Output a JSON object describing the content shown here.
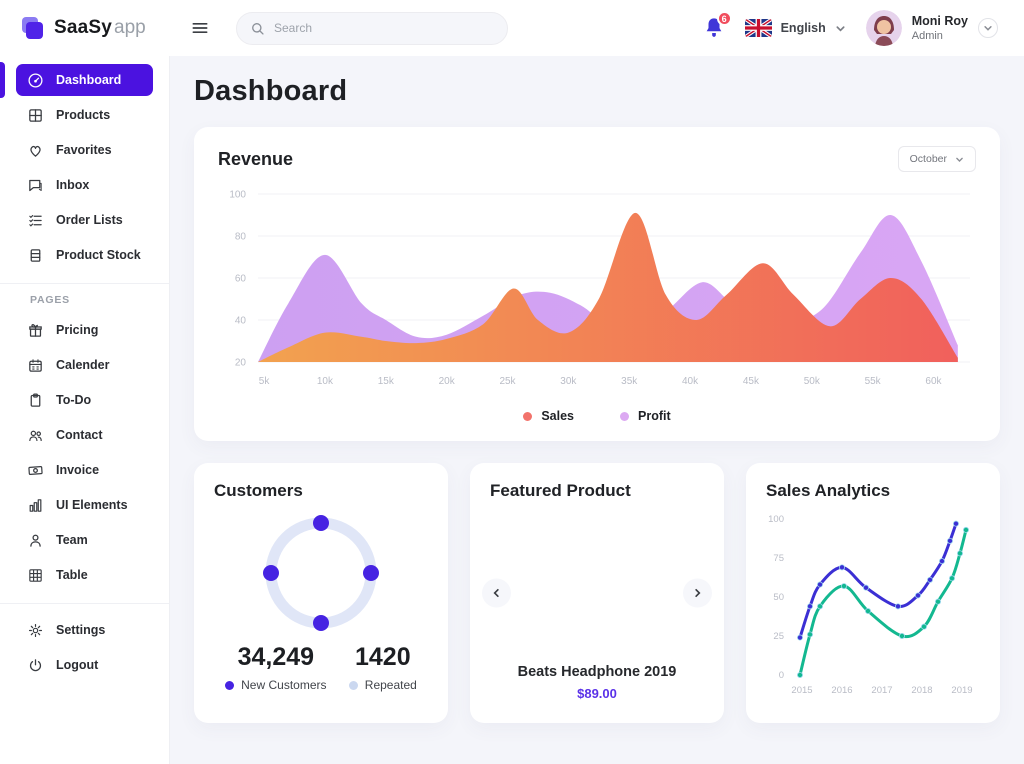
{
  "topbar": {
    "brand_name": "SaaSy",
    "brand_suffix": "app",
    "search_placeholder": "Search",
    "notification_count": "6",
    "language": "English",
    "user": {
      "name": "Moni Roy",
      "role": "Admin"
    }
  },
  "sidebar": {
    "main": [
      {
        "label": "Dashboard",
        "icon": "dashboard-icon",
        "active": true
      },
      {
        "label": "Products",
        "icon": "products-icon"
      },
      {
        "label": "Favorites",
        "icon": "heart-icon"
      },
      {
        "label": "Inbox",
        "icon": "chat-icon"
      },
      {
        "label": "Order Lists",
        "icon": "list-check-icon"
      },
      {
        "label": "Product Stock",
        "icon": "stock-icon"
      }
    ],
    "section_label": "PAGES",
    "pages": [
      {
        "label": "Pricing",
        "icon": "gift-icon"
      },
      {
        "label": "Calender",
        "icon": "calendar-icon"
      },
      {
        "label": "To-Do",
        "icon": "clipboard-icon"
      },
      {
        "label": "Contact",
        "icon": "contacts-icon"
      },
      {
        "label": "Invoice",
        "icon": "invoice-icon"
      },
      {
        "label": "UI Elements",
        "icon": "bar-chart-icon"
      },
      {
        "label": "Team",
        "icon": "person-icon"
      },
      {
        "label": "Table",
        "icon": "table-icon"
      }
    ],
    "footer": [
      {
        "label": "Settings",
        "icon": "gear-icon"
      },
      {
        "label": "Logout",
        "icon": "power-icon"
      }
    ]
  },
  "page": {
    "title": "Dashboard"
  },
  "revenue": {
    "title": "Revenue",
    "period": "October",
    "legend": [
      {
        "label": "Sales",
        "color": "#F2736B"
      },
      {
        "label": "Profit",
        "color": "#DCA9F2"
      }
    ],
    "chart": {
      "type": "area",
      "x_tick_labels": [
        "5k",
        "10k",
        "15k",
        "20k",
        "25k",
        "30k",
        "35k",
        "40k",
        "45k",
        "50k",
        "55k",
        "60k"
      ],
      "x_tick_values": [
        5,
        10,
        15,
        20,
        25,
        30,
        35,
        40,
        45,
        50,
        55,
        60
      ],
      "y_ticks": [
        100,
        80,
        60,
        40,
        20
      ],
      "x_range": [
        4.5,
        63
      ],
      "y_range": [
        20,
        100
      ],
      "grid": "horizontal",
      "series": [
        {
          "name": "Profit",
          "fill_from": "#CDA0F2",
          "fill_to": "#D9A6F4",
          "x": [
            4.5,
            7,
            10,
            13,
            15,
            17.5,
            20,
            23,
            26,
            28.5,
            31,
            33,
            35.5,
            38,
            41,
            43.5,
            46,
            48.5,
            51,
            54,
            56.5,
            59,
            62
          ],
          "values": [
            20,
            48,
            71,
            48,
            40,
            32,
            33,
            42,
            52,
            53,
            47,
            39,
            36,
            44,
            58,
            48,
            45,
            40,
            46,
            72,
            90,
            68,
            28
          ]
        },
        {
          "name": "Sales",
          "fill_from": "#F2A24F",
          "fill_to": "#F1605C",
          "x": [
            4.5,
            7,
            10,
            13,
            15,
            17.5,
            20,
            23,
            25.5,
            27.5,
            30,
            32.5,
            35.5,
            38,
            40.5,
            43,
            46,
            48.5,
            51.5,
            54,
            56.5,
            59,
            62
          ],
          "values": [
            20,
            27,
            34,
            32,
            30,
            29,
            31,
            38,
            55,
            40,
            34,
            50,
            91,
            52,
            40,
            52,
            67,
            52,
            37,
            50,
            60,
            50,
            22
          ]
        }
      ]
    }
  },
  "customers": {
    "title": "Customers",
    "chart": {
      "type": "donut",
      "ring_color": "#E0E6F7",
      "dot_color": "#4623E2",
      "segments": [
        {
          "label": "New Customers",
          "value": 34249
        },
        {
          "label": "Repeated",
          "value": 1420
        }
      ]
    },
    "stats": [
      {
        "value": "34,249",
        "label": "New Customers",
        "dot_color": "#4623E2"
      },
      {
        "value": "1420",
        "label": "Repeated",
        "dot_color": "#CBD8F0"
      }
    ]
  },
  "featured": {
    "title": "Featured Product",
    "product_name": "Beats Headphone 2019",
    "price": "$89.00"
  },
  "analytics": {
    "title": "Sales Analytics",
    "chart": {
      "type": "line",
      "x_ticks": [
        2015,
        2016,
        2017,
        2018,
        2019
      ],
      "y_ticks": [
        0,
        25,
        50,
        75,
        100
      ],
      "x_range": [
        2014.75,
        2019.3
      ],
      "y_range": [
        0,
        100
      ],
      "series": [
        {
          "name": "primary",
          "color": "#3B2FD4",
          "points": [
            [
              2014.95,
              24
            ],
            [
              2015.2,
              44
            ],
            [
              2015.45,
              58
            ],
            [
              2016,
              69
            ],
            [
              2016.6,
              56
            ],
            [
              2017.4,
              44
            ],
            [
              2017.9,
              51
            ],
            [
              2018.2,
              61
            ],
            [
              2018.5,
              73
            ],
            [
              2018.7,
              86
            ],
            [
              2018.85,
              97
            ]
          ]
        },
        {
          "name": "secondary",
          "color": "#13B890",
          "points": [
            [
              2014.95,
              0
            ],
            [
              2015.2,
              26
            ],
            [
              2015.45,
              44
            ],
            [
              2016.05,
              57
            ],
            [
              2016.65,
              41
            ],
            [
              2017.5,
              25
            ],
            [
              2018.05,
              31
            ],
            [
              2018.4,
              47
            ],
            [
              2018.75,
              62
            ],
            [
              2018.95,
              78
            ],
            [
              2019.1,
              93
            ]
          ]
        }
      ]
    }
  }
}
